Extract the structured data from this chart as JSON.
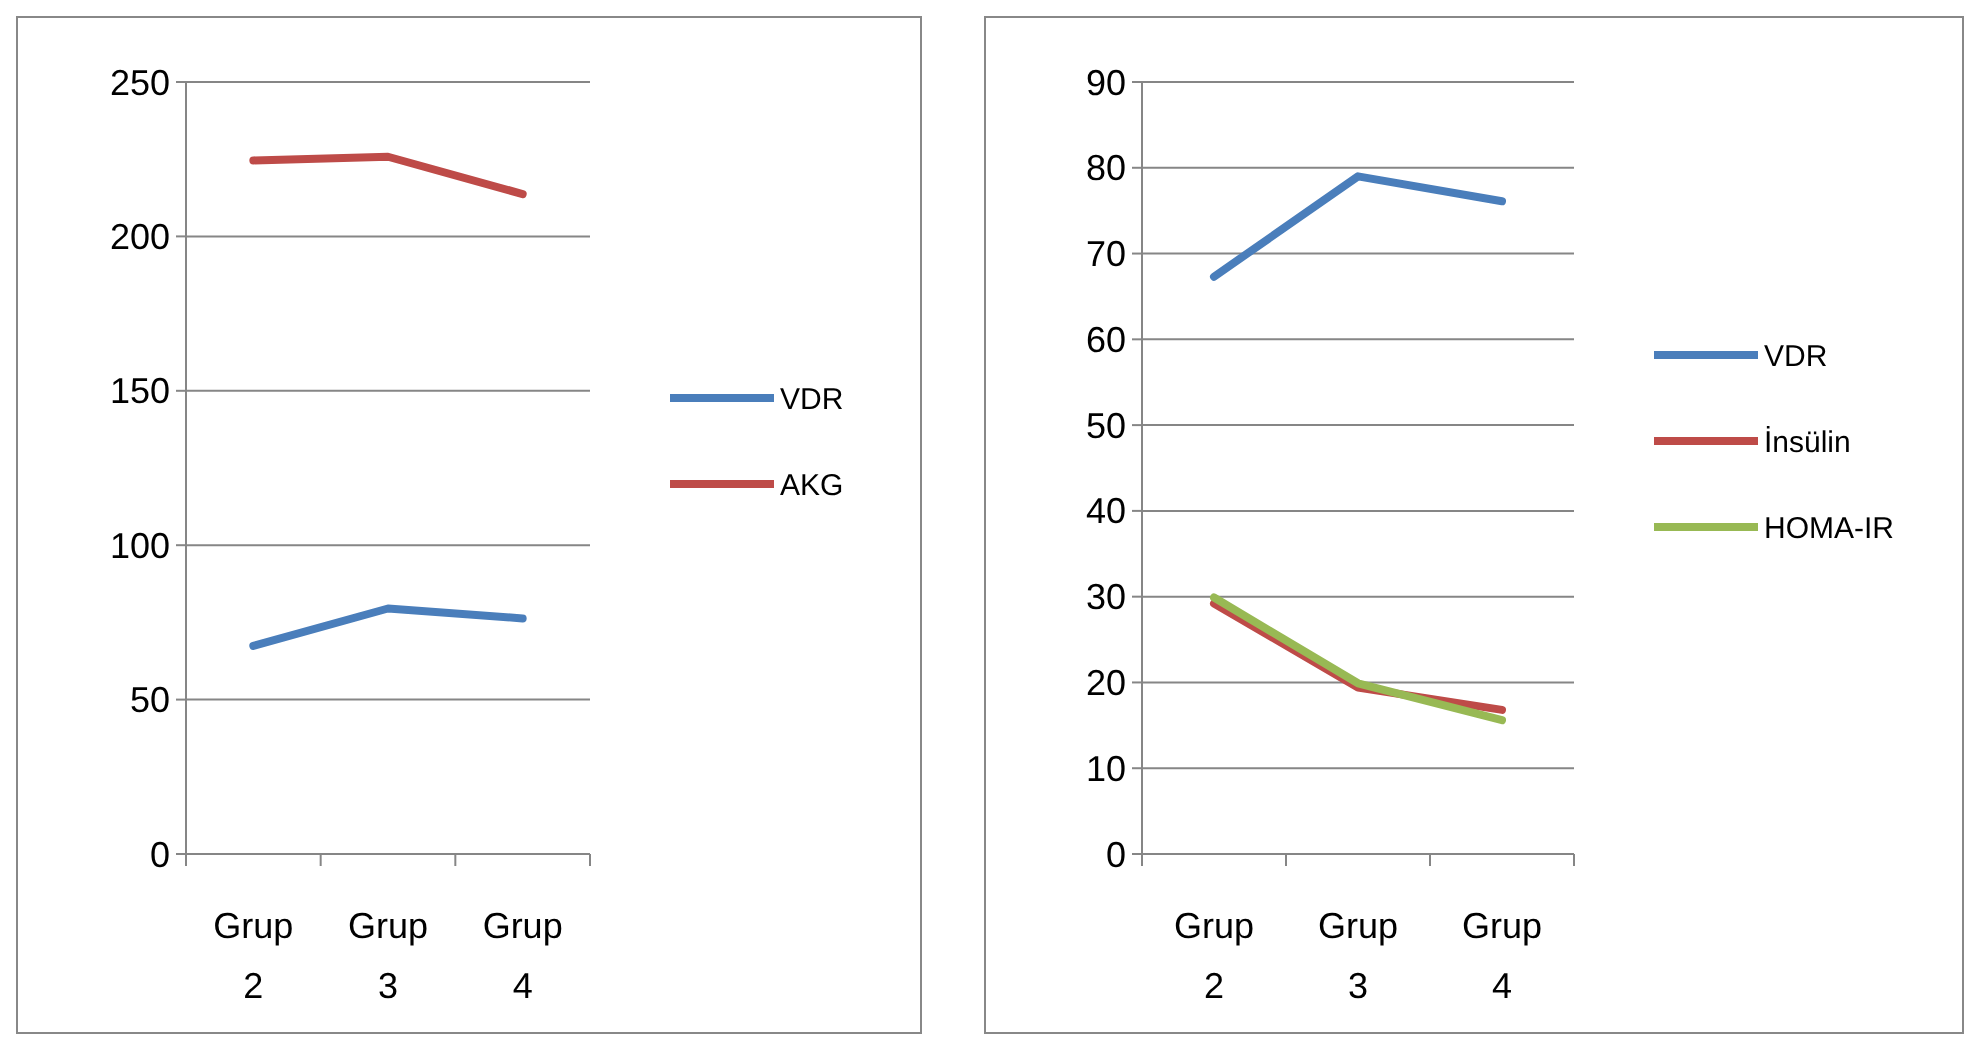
{
  "chart_data": [
    {
      "type": "line",
      "categories": [
        "Grup 2",
        "Grup 3",
        "Grup 4"
      ],
      "ylim": [
        0,
        250
      ],
      "yticks": [
        0,
        50,
        100,
        150,
        200,
        250
      ],
      "grid": "y",
      "legend": "right",
      "series": [
        {
          "name": "VDR",
          "color": "#4a7ebb",
          "values": [
            67.4,
            79.5,
            76.3
          ]
        },
        {
          "name": "AKG",
          "color": "#be4b48",
          "values": [
            224.6,
            225.8,
            213.7
          ]
        }
      ]
    },
    {
      "type": "line",
      "categories": [
        "Grup 2",
        "Grup 3",
        "Grup 4"
      ],
      "ylim": [
        0,
        90
      ],
      "yticks": [
        0,
        10,
        20,
        30,
        40,
        50,
        60,
        70,
        80,
        90
      ],
      "grid": "y",
      "legend": "right",
      "series": [
        {
          "name": "VDR",
          "color": "#4a7ebb",
          "values": [
            67.3,
            79,
            76.1
          ]
        },
        {
          "name": "İnsülin",
          "color": "#be4b48",
          "values": [
            29.2,
            19.4,
            16.8
          ]
        },
        {
          "name": "HOMA-IR",
          "color": "#98b954",
          "values": [
            29.9,
            19.9,
            15.6
          ]
        }
      ]
    }
  ]
}
